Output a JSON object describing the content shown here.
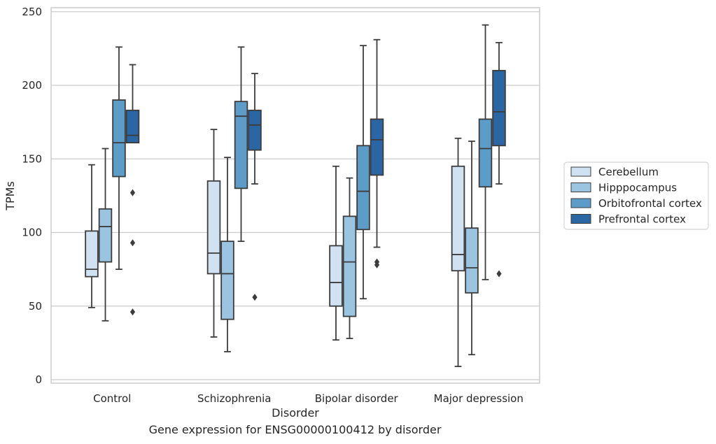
{
  "chart_data": {
    "type": "box",
    "caption": "Gene expression for ENSG00000100412 by disorder",
    "xlabel": "Disorder",
    "ylabel": "TPMs",
    "ylim": [
      -2,
      250
    ],
    "yticks": [
      0,
      50,
      100,
      150,
      200,
      250
    ],
    "grid": "horizontal",
    "legend_position": "right",
    "categories": [
      "Control",
      "Schizophrenia",
      "Bipolar disorder",
      "Major depression"
    ],
    "series": [
      {
        "name": "Cerebellum",
        "color": "#d0e1f2",
        "boxes": [
          {
            "whisker_low": 49,
            "q1": 70,
            "median": 75,
            "q3": 101,
            "whisker_high": 146,
            "outliers": []
          },
          {
            "whisker_low": 29,
            "q1": 72,
            "median": 86,
            "q3": 135,
            "whisker_high": 170,
            "outliers": []
          },
          {
            "whisker_low": 27,
            "q1": 50,
            "median": 66,
            "q3": 91,
            "whisker_high": 145,
            "outliers": []
          },
          {
            "whisker_low": 9,
            "q1": 74,
            "median": 85,
            "q3": 145,
            "whisker_high": 164,
            "outliers": []
          }
        ]
      },
      {
        "name": "Hipppocampus",
        "color": "#9ac4df",
        "boxes": [
          {
            "whisker_low": 40,
            "q1": 80,
            "median": 104,
            "q3": 116,
            "whisker_high": 157,
            "outliers": []
          },
          {
            "whisker_low": 19,
            "q1": 41,
            "median": 72,
            "q3": 94,
            "whisker_high": 151,
            "outliers": []
          },
          {
            "whisker_low": 28,
            "q1": 43,
            "median": 80,
            "q3": 111,
            "whisker_high": 137,
            "outliers": []
          },
          {
            "whisker_low": 17,
            "q1": 59,
            "median": 76,
            "q3": 103,
            "whisker_high": 162,
            "outliers": []
          }
        ]
      },
      {
        "name": "Orbitofrontal cortex",
        "color": "#5b9cc8",
        "boxes": [
          {
            "whisker_low": 75,
            "q1": 138,
            "median": 161,
            "q3": 190,
            "whisker_high": 226,
            "outliers": []
          },
          {
            "whisker_low": 94,
            "q1": 130,
            "median": 179,
            "q3": 189,
            "whisker_high": 226,
            "outliers": []
          },
          {
            "whisker_low": 55,
            "q1": 102,
            "median": 128,
            "q3": 159,
            "whisker_high": 227,
            "outliers": []
          },
          {
            "whisker_low": 68,
            "q1": 131,
            "median": 157,
            "q3": 177,
            "whisker_high": 241,
            "outliers": []
          }
        ]
      },
      {
        "name": "Prefrontal cortex",
        "color": "#2a66a3",
        "boxes": [
          {
            "whisker_low": 161,
            "q1": 161,
            "median": 166,
            "q3": 183,
            "whisker_high": 214,
            "outliers": [
              127,
              93,
              46
            ]
          },
          {
            "whisker_low": 133,
            "q1": 156,
            "median": 173,
            "q3": 183,
            "whisker_high": 208,
            "outliers": [
              56
            ]
          },
          {
            "whisker_low": 90,
            "q1": 139,
            "median": 163,
            "q3": 177,
            "whisker_high": 231,
            "outliers": [
              80,
              78
            ]
          },
          {
            "whisker_low": 133,
            "q1": 159,
            "median": 182,
            "q3": 210,
            "whisker_high": 229,
            "outliers": [
              72
            ]
          }
        ]
      }
    ]
  }
}
